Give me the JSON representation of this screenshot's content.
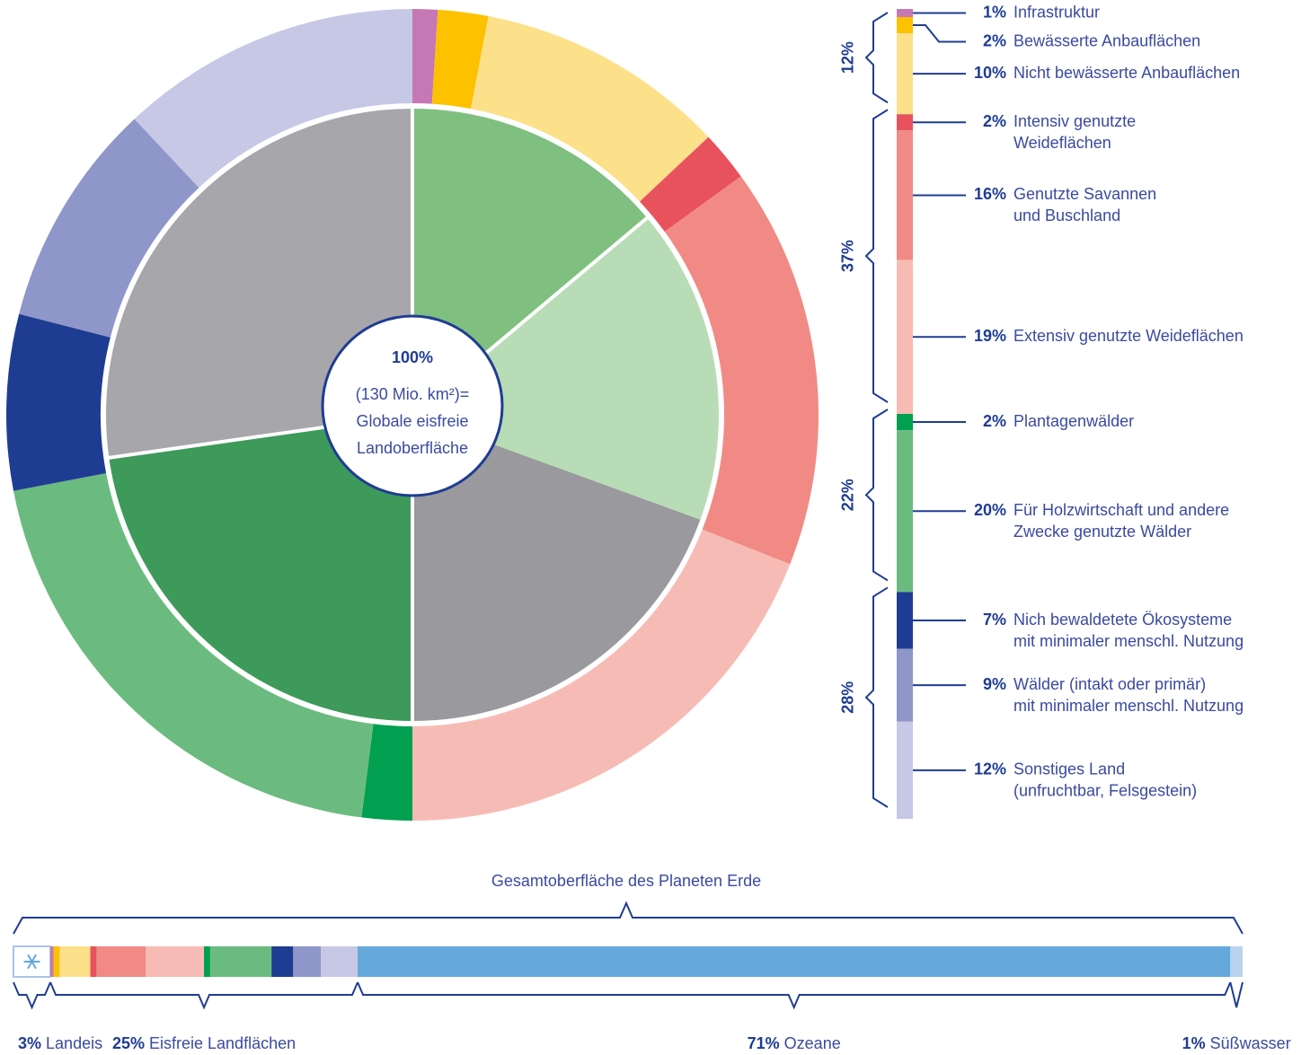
{
  "chart_data": {
    "type": "donut",
    "center_text": [
      "100%",
      "(130 Mio. km²)=",
      "Globale eisfreie",
      "Landoberfläche"
    ],
    "categories": [
      [
        "Infrastruktur"
      ],
      [
        "Bewässerte Anbauflächen"
      ],
      [
        "Nicht bewässerte Anbauflächen"
      ],
      [
        "Intensiv genutzte",
        "Weideflächen"
      ],
      [
        "Genutzte Savannen",
        "und Buschland"
      ],
      [
        "Extensiv genutzte Weideflächen"
      ],
      [
        "Plantagenwälder"
      ],
      [
        "Für Holzwirtschaft und andere",
        "Zwecke genutzte Wälder"
      ],
      [
        "Nich bewaldetete Ökosysteme",
        "mit minimaler menschl. Nutzung"
      ],
      [
        "Wälder (intakt oder primär)",
        "mit minimaler menschl. Nutzung"
      ],
      [
        "Sonstiges Land",
        "(unfruchtbar, Felsgestein)"
      ]
    ],
    "values": [
      1,
      2,
      10,
      2,
      16,
      19,
      2,
      20,
      7,
      9,
      12
    ],
    "value_labels": [
      "1%",
      "2%",
      "10%",
      "2%",
      "16%",
      "19%",
      "2%",
      "20%",
      "7%",
      "9%",
      "12%"
    ],
    "colors": [
      "#c678b4",
      "#fcc200",
      "#fde08a",
      "#e8525c",
      "#f18a84",
      "#f7bbb5",
      "#00a050",
      "#6bbb80",
      "#1f3c93",
      "#8f96c9",
      "#c7c8e6"
    ],
    "groups": {
      "values": [
        12,
        37,
        22,
        28
      ],
      "value_labels": [
        "12%",
        "37%",
        "22%",
        "28%"
      ]
    },
    "total_bar": {
      "title": "Gesamtoberfläche des Planeten Erde",
      "categories": [
        "Landeis",
        "Eisfreie Landflächen",
        "Ozeane",
        "Süßwasser"
      ],
      "values": [
        3,
        25,
        71,
        1
      ],
      "value_labels": [
        "3%",
        "25%",
        "71%",
        "1%"
      ],
      "colors": [
        "#ffffff",
        "#6bbb80",
        "#64a8dc",
        "#b7d3ee"
      ]
    }
  }
}
